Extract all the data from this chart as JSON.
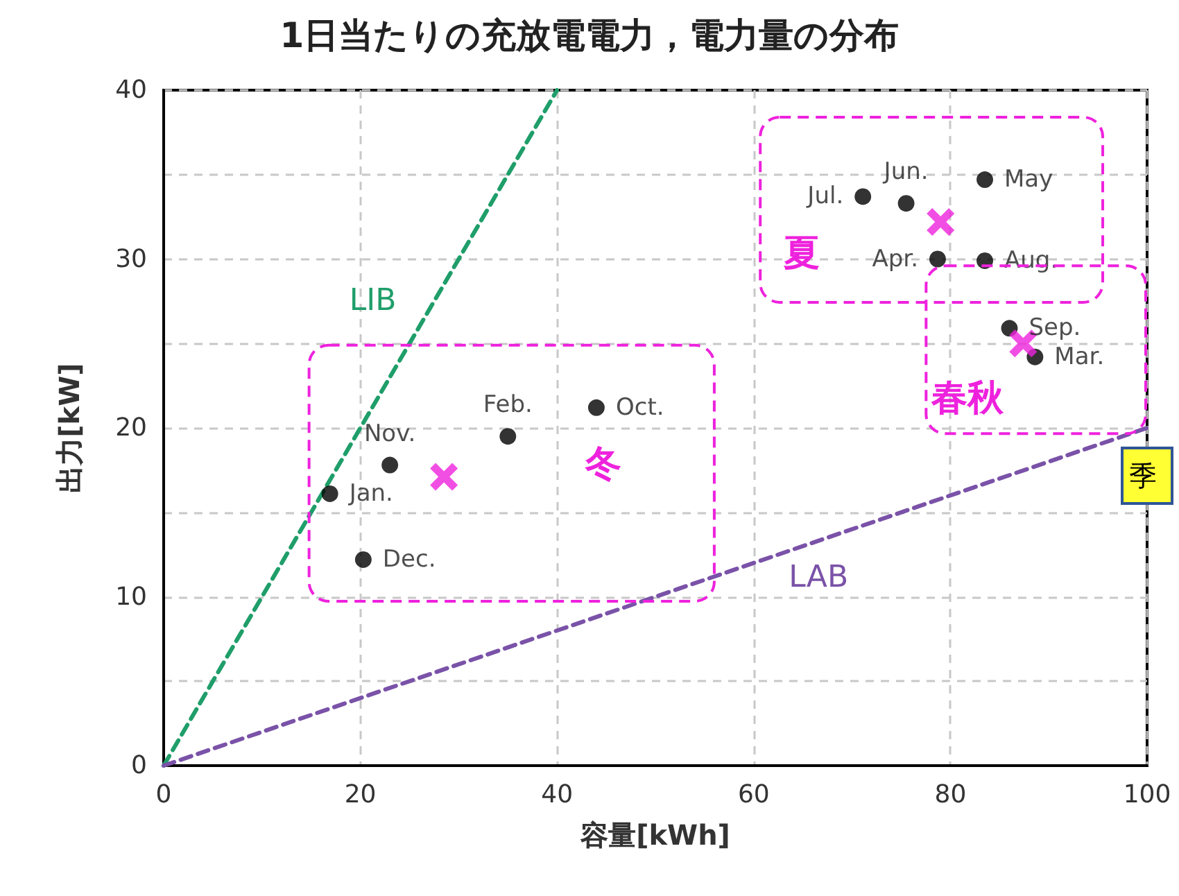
{
  "chart_data": {
    "type": "scatter",
    "title": "1日当たりの充放電電力，電力量の分布",
    "xlabel": "容量[kWh]",
    "ylabel": "出力[kW]",
    "xlim": [
      0,
      100
    ],
    "xticks": [
      0,
      20,
      40,
      60,
      80,
      100
    ],
    "ylim": [
      0,
      40
    ],
    "yticks": [
      0,
      {
        "value": 5,
        "label": null
      },
      10,
      {
        "value": 15,
        "label": null
      },
      20,
      {
        "value": 25,
        "label": null
      },
      30,
      {
        "value": 35,
        "label": null
      },
      40
    ],
    "grid": true,
    "legend": false,
    "series": [
      {
        "color": "#000000",
        "marker": "circle",
        "x": [
          16.9,
          35.0,
          88.6,
          78.7,
          83.5,
          75.5,
          71.1,
          83.5,
          86.0,
          44.0,
          23.0,
          20.3
        ],
        "values": [
          16.1,
          19.5,
          24.2,
          30.0,
          34.7,
          33.3,
          33.7,
          29.9,
          25.9,
          21.2,
          17.8,
          12.2
        ],
        "value_labels": [
          "Jan.",
          "Feb.",
          "Mar.",
          "Apr.",
          "May",
          "Jun.",
          "Jul.",
          "Aug.",
          "Sep.",
          "Oct.",
          "Nov.",
          "Dec."
        ]
      },
      {
        "color": "#ee22dd",
        "marker": "cross",
        "x": [
          28.5,
          79.0,
          87.4
        ],
        "values": [
          17.1,
          32.2,
          25.0
        ]
      },
      {
        "type": "line",
        "name": "LIB",
        "color": "#1f9e6a",
        "line_style": "dashed",
        "marker": "none",
        "x": [
          0,
          40
        ],
        "values": [
          0,
          40
        ]
      },
      {
        "type": "line",
        "name": "LAB",
        "color": "#7a52a8",
        "line_style": "dashed",
        "marker": "none",
        "x": [
          0,
          100
        ],
        "values": [
          0,
          20
        ]
      }
    ],
    "annotations": [
      "冬",
      "夏",
      "春秋",
      "季"
    ]
  }
}
